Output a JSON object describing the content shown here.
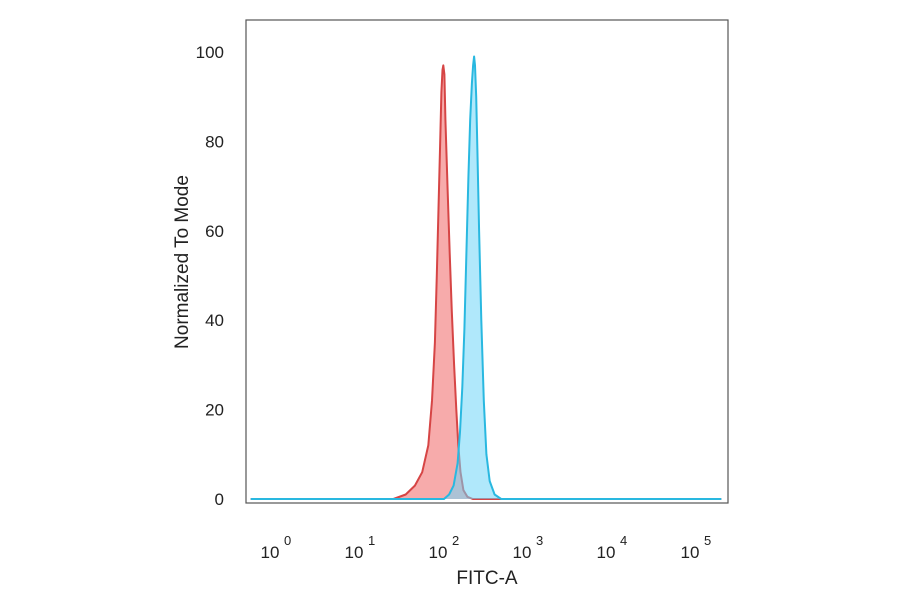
{
  "chart_data": {
    "type": "area",
    "title": "",
    "xlabel": "FITC-A",
    "ylabel": "Normalized To Mode",
    "x_scale": "log10",
    "xlim": [
      0.5,
      200000
    ],
    "ylim": [
      0,
      105
    ],
    "grid": false,
    "legend": "none",
    "x_ticks": [
      {
        "base": "10",
        "exp": "0",
        "value": 1
      },
      {
        "base": "10",
        "exp": "1",
        "value": 10
      },
      {
        "base": "10",
        "exp": "2",
        "value": 100
      },
      {
        "base": "10",
        "exp": "3",
        "value": 1000
      },
      {
        "base": "10",
        "exp": "4",
        "value": 10000
      },
      {
        "base": "10",
        "exp": "5",
        "value": 100000
      }
    ],
    "y_ticks": [
      "0",
      "20",
      "40",
      "60",
      "80",
      "100"
    ],
    "series": [
      {
        "line_color": "#d64545",
        "fill_color": "#f48a8a",
        "fill_opacity": 0.72,
        "points": [
          [
            0.5,
            0
          ],
          [
            25,
            0
          ],
          [
            35,
            1
          ],
          [
            45,
            3
          ],
          [
            55,
            6
          ],
          [
            65,
            12
          ],
          [
            72,
            22
          ],
          [
            78,
            35
          ],
          [
            82,
            50
          ],
          [
            86,
            65
          ],
          [
            90,
            80
          ],
          [
            93,
            91
          ],
          [
            96,
            96
          ],
          [
            98,
            97
          ],
          [
            101,
            95
          ],
          [
            104,
            85
          ],
          [
            110,
            70
          ],
          [
            117,
            55
          ],
          [
            124,
            42
          ],
          [
            132,
            30
          ],
          [
            140,
            20
          ],
          [
            148,
            12
          ],
          [
            157,
            6
          ],
          [
            170,
            2
          ],
          [
            190,
            0.5
          ],
          [
            220,
            0
          ],
          [
            200000,
            0
          ]
        ]
      },
      {
        "line_color": "#29b8e0",
        "fill_color": "#6fd6f7",
        "fill_opacity": 0.55,
        "points": [
          [
            0.5,
            0
          ],
          [
            100,
            0
          ],
          [
            115,
            1
          ],
          [
            130,
            3
          ],
          [
            145,
            8
          ],
          [
            155,
            15
          ],
          [
            165,
            25
          ],
          [
            175,
            38
          ],
          [
            185,
            55
          ],
          [
            195,
            72
          ],
          [
            205,
            85
          ],
          [
            215,
            93
          ],
          [
            222,
            97
          ],
          [
            228,
            99
          ],
          [
            234,
            97
          ],
          [
            242,
            90
          ],
          [
            250,
            78
          ],
          [
            262,
            60
          ],
          [
            278,
            40
          ],
          [
            298,
            22
          ],
          [
            320,
            10
          ],
          [
            350,
            4
          ],
          [
            400,
            1
          ],
          [
            480,
            0
          ],
          [
            200000,
            0
          ]
        ]
      }
    ]
  }
}
